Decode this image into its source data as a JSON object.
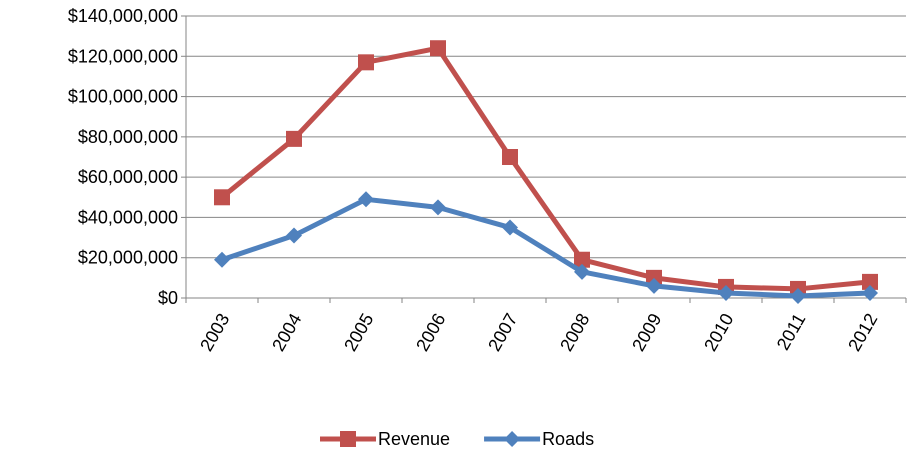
{
  "chart_data": {
    "type": "line",
    "categories": [
      "2003",
      "2004",
      "2005",
      "2006",
      "2007",
      "2008",
      "2009",
      "2010",
      "2011",
      "2012"
    ],
    "series": [
      {
        "name": "Revenue",
        "color": "#c0504d",
        "marker": "square",
        "values": [
          50000000,
          79000000,
          117000000,
          124000000,
          70000000,
          19000000,
          10000000,
          5500000,
          4500000,
          8000000
        ]
      },
      {
        "name": "Roads",
        "color": "#4f81bd",
        "marker": "diamond",
        "values": [
          19000000,
          31000000,
          49000000,
          45000000,
          35000000,
          13000000,
          6000000,
          2500000,
          1000000,
          2500000
        ]
      }
    ],
    "ylim": [
      0,
      140000000
    ],
    "yticks": [
      {
        "value": 0,
        "label": "$0"
      },
      {
        "value": 20000000,
        "label": "$20,000,000"
      },
      {
        "value": 40000000,
        "label": "$40,000,000"
      },
      {
        "value": 60000000,
        "label": "$60,000,000"
      },
      {
        "value": 80000000,
        "label": "$80,000,000"
      },
      {
        "value": 100000000,
        "label": "$100,000,000"
      },
      {
        "value": 120000000,
        "label": "$120,000,000"
      },
      {
        "value": 140000000,
        "label": "$140,000,000"
      }
    ],
    "grid": true,
    "legend": "bottom"
  }
}
